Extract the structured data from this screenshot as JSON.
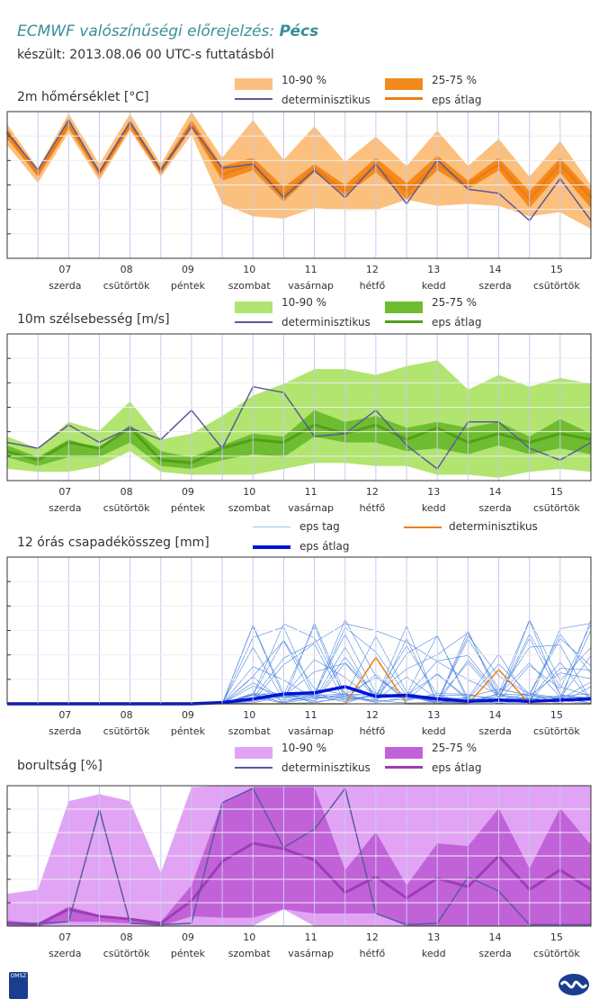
{
  "header": {
    "title_prefix": "ECMWF valószínűségi előrejelzés:",
    "title_city": "Pécs",
    "subtitle": "készült: 2013.08.06 00 UTC-s futtatásból"
  },
  "days": [
    "07",
    "08",
    "09",
    "10",
    "11",
    "12",
    "13",
    "14",
    "15"
  ],
  "weekdays": [
    "szerda",
    "csütörtök",
    "péntek",
    "szombat",
    "vasárnap",
    "hétfő",
    "kedd",
    "szerda",
    "csütörtök"
  ],
  "colors": {
    "temp_outer": "#fbc07e",
    "temp_inner": "#f48a1e",
    "temp_mean": "#ee7d10",
    "wind_outer": "#b1e56f",
    "wind_inner": "#6ebd30",
    "wind_mean": "#52a017",
    "cloud_outer": "#e1a4f4",
    "cloud_inner": "#c262d9",
    "cloud_mean": "#9e3bb7",
    "det": "#5a5a9a",
    "precip_member": "#4e86e0",
    "precip_mean": "#0013d9",
    "precip_det": "#ee7d10"
  },
  "chart_data": [
    {
      "type": "area",
      "title": "2m hőmérséklet [°C]",
      "legend": [
        "10-90 %",
        "25-75 %",
        "determinisztikus",
        "eps átlag"
      ],
      "ylim": [
        0,
        7
      ],
      "series": [
        {
          "name": "10-90 %",
          "upper": [
            6.4,
            4.3,
            6.9,
            4.5,
            6.9,
            4.5,
            7.0,
            4.8,
            6.6,
            4.7,
            6.3,
            4.6,
            5.8,
            4.4,
            6.1,
            4.4,
            5.7,
            3.9,
            5.6,
            3.5
          ],
          "lower": [
            5.4,
            3.6,
            6.0,
            3.7,
            6.1,
            3.9,
            5.9,
            2.6,
            2.0,
            1.9,
            2.4,
            2.3,
            2.3,
            2.8,
            2.5,
            2.6,
            2.5,
            2.0,
            2.2,
            1.4
          ]
        },
        {
          "name": "25-75 %",
          "upper": [
            6.2,
            4.1,
            6.6,
            4.2,
            6.6,
            4.3,
            6.6,
            4.4,
            4.8,
            3.4,
            4.5,
            3.5,
            4.8,
            3.6,
            4.9,
            3.7,
            4.8,
            3.2,
            4.8,
            3.2
          ],
          "lower": [
            5.7,
            3.9,
            6.2,
            3.9,
            6.2,
            4.0,
            6.2,
            3.7,
            4.2,
            2.7,
            4.1,
            3.0,
            4.1,
            2.8,
            4.2,
            3.3,
            4.2,
            2.4,
            4.1,
            2.4
          ]
        },
        {
          "name": "determinisztikus",
          "values": [
            6.0,
            4.2,
            6.6,
            4.1,
            6.5,
            4.2,
            6.3,
            4.3,
            4.5,
            2.9,
            4.2,
            2.9,
            4.5,
            2.6,
            4.7,
            3.3,
            3.1,
            1.8,
            3.8,
            1.8
          ]
        },
        {
          "name": "eps átlag",
          "values": [
            6.0,
            4.0,
            6.4,
            4.1,
            6.4,
            4.2,
            6.4,
            4.0,
            4.5,
            3.0,
            4.3,
            3.2,
            4.4,
            3.2,
            4.5,
            3.5,
            4.5,
            2.8,
            4.5,
            2.9
          ]
        }
      ]
    },
    {
      "type": "area",
      "title": "10m szélsebesség [m/s]",
      "legend": [
        "10-90 %",
        "25-75 %",
        "determinisztikus",
        "eps átlag"
      ],
      "ylim": [
        0,
        5
      ],
      "series": [
        {
          "name": "10-90 %",
          "upper": [
            1.5,
            1.1,
            2.0,
            1.7,
            2.7,
            1.4,
            1.6,
            2.2,
            2.9,
            3.3,
            3.8,
            3.8,
            3.6,
            3.9,
            4.1,
            3.1,
            3.6,
            3.2,
            3.5,
            3.3
          ],
          "lower": [
            0.4,
            0.3,
            0.3,
            0.5,
            1.0,
            0.3,
            0.2,
            0.2,
            0.2,
            0.4,
            0.6,
            0.6,
            0.5,
            0.5,
            0.2,
            0.2,
            0.1,
            0.3,
            0.4,
            0.3
          ]
        },
        {
          "name": "25-75 %",
          "upper": [
            1.2,
            0.8,
            1.4,
            1.1,
            1.9,
            1.0,
            0.8,
            1.2,
            1.6,
            1.5,
            2.4,
            2.0,
            2.2,
            1.8,
            2.0,
            1.8,
            2.0,
            1.5,
            2.1,
            1.6
          ],
          "lower": [
            0.8,
            0.5,
            0.8,
            0.8,
            1.3,
            0.5,
            0.4,
            0.7,
            0.9,
            0.8,
            1.5,
            1.3,
            1.3,
            1.0,
            1.1,
            0.9,
            1.2,
            0.9,
            1.1,
            0.9
          ]
        },
        {
          "name": "determinisztikus",
          "values": [
            1.3,
            1.1,
            1.9,
            1.3,
            1.8,
            1.4,
            2.4,
            1.1,
            3.2,
            3.0,
            1.5,
            1.6,
            2.4,
            1.2,
            0.4,
            2.0,
            2.0,
            1.1,
            0.7,
            1.3
          ]
        },
        {
          "name": "eps átlag",
          "values": [
            1.0,
            0.7,
            1.3,
            1.1,
            1.8,
            0.7,
            0.6,
            1.1,
            1.4,
            1.3,
            1.9,
            1.6,
            1.9,
            1.4,
            1.8,
            1.3,
            1.6,
            1.3,
            1.6,
            1.4
          ]
        }
      ]
    },
    {
      "type": "line",
      "title": "12 órás csapadékösszeg [mm]",
      "legend": [
        "eps tag",
        "determinisztikus",
        "eps átlag"
      ],
      "ylim": [
        0,
        6
      ],
      "series": [
        {
          "name": "eps átlag",
          "values": [
            0,
            0,
            0,
            0,
            0,
            0,
            0,
            0.05,
            0.2,
            0.4,
            0.45,
            0.7,
            0.3,
            0.35,
            0.2,
            0.1,
            0.15,
            0.1,
            0.15,
            0.2
          ]
        },
        {
          "name": "determinisztikus",
          "values": [
            0,
            0,
            0,
            0,
            0,
            0,
            0,
            0,
            0,
            0,
            0,
            0,
            1.9,
            0,
            0,
            0,
            1.4,
            0,
            0,
            0
          ]
        }
      ]
    },
    {
      "type": "area",
      "title": "borultság [%]",
      "legend": [
        "10-90 %",
        "25-75 %",
        "determinisztikus",
        "eps átlag"
      ],
      "ylim": [
        0,
        100
      ],
      "series": [
        {
          "name": "10-90 %",
          "upper": [
            23,
            26,
            89,
            94,
            89,
            38,
            99,
            100,
            100,
            100,
            100,
            100,
            100,
            100,
            100,
            100,
            100,
            100,
            100,
            100
          ],
          "lower": [
            0,
            0,
            0,
            0,
            0,
            0,
            0,
            0,
            0,
            12,
            0,
            0,
            0,
            0,
            0,
            0,
            0,
            0,
            0,
            0
          ]
        },
        {
          "name": "25-75 %",
          "upper": [
            4,
            2,
            14,
            8,
            4,
            3,
            29,
            88,
            99,
            99,
            99,
            40,
            67,
            29,
            59,
            57,
            84,
            41,
            84,
            58
          ],
          "lower": [
            0,
            0,
            3,
            3,
            2,
            0,
            7,
            6,
            6,
            12,
            9,
            9,
            9,
            0,
            0,
            0,
            0,
            0,
            0,
            0
          ]
        },
        {
          "name": "determinisztikus",
          "values": [
            2,
            2,
            3,
            83,
            2,
            1,
            2,
            88,
            98,
            56,
            69,
            98,
            9,
            1,
            2,
            35,
            25,
            1,
            1,
            1
          ]
        },
        {
          "name": "eps átlag",
          "values": [
            2,
            1,
            12,
            7,
            5,
            2,
            18,
            46,
            59,
            55,
            47,
            24,
            35,
            20,
            34,
            28,
            50,
            26,
            40,
            26
          ]
        }
      ]
    }
  ]
}
